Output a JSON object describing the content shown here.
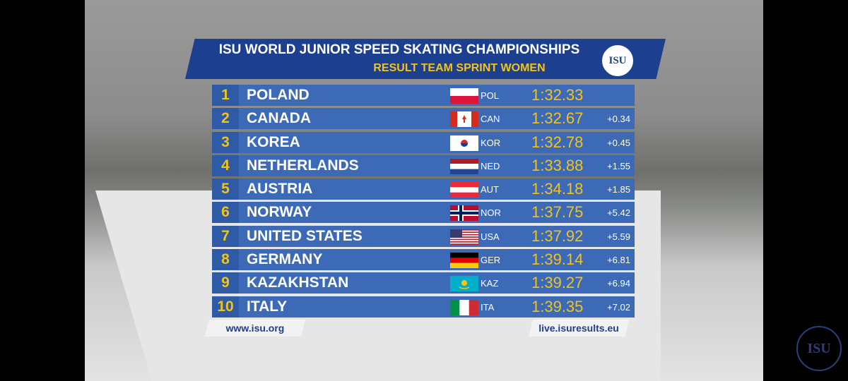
{
  "header": {
    "title": "ISU WORLD JUNIOR SPEED SKATING CHAMPIONSHIPS",
    "subtitle": "RESULT TEAM SPRINT WOMEN",
    "logo": "ISU"
  },
  "table": {
    "rows": [
      {
        "rank": 1,
        "country": "POLAND",
        "code": "POL",
        "time": "1:32.33",
        "gap": null
      },
      {
        "rank": 2,
        "country": "CANADA",
        "code": "CAN",
        "time": "1:32.67",
        "gap": "+0.34"
      },
      {
        "rank": 3,
        "country": "KOREA",
        "code": "KOR",
        "time": "1:32.78",
        "gap": "+0.45"
      },
      {
        "rank": 4,
        "country": "NETHERLANDS",
        "code": "NED",
        "time": "1:33.88",
        "gap": "+1.55"
      },
      {
        "rank": 5,
        "country": "AUSTRIA",
        "code": "AUT",
        "time": "1:34.18",
        "gap": "+1.85"
      },
      {
        "rank": 6,
        "country": "NORWAY",
        "code": "NOR",
        "time": "1:37.75",
        "gap": "+5.42"
      },
      {
        "rank": 7,
        "country": "UNITED STATES",
        "code": "USA",
        "time": "1:37.92",
        "gap": "+5.59"
      },
      {
        "rank": 8,
        "country": "GERMANY",
        "code": "GER",
        "time": "1:39.14",
        "gap": "+6.81"
      },
      {
        "rank": 9,
        "country": "KAZAKHSTAN",
        "code": "KAZ",
        "time": "1:39.27",
        "gap": "+6.94"
      },
      {
        "rank": 10,
        "country": "ITALY",
        "code": "ITA",
        "time": "1:39.35",
        "gap": "+7.02"
      }
    ]
  },
  "footer": {
    "left": "www.isu.org",
    "right": "live.isuresults.eu"
  }
}
